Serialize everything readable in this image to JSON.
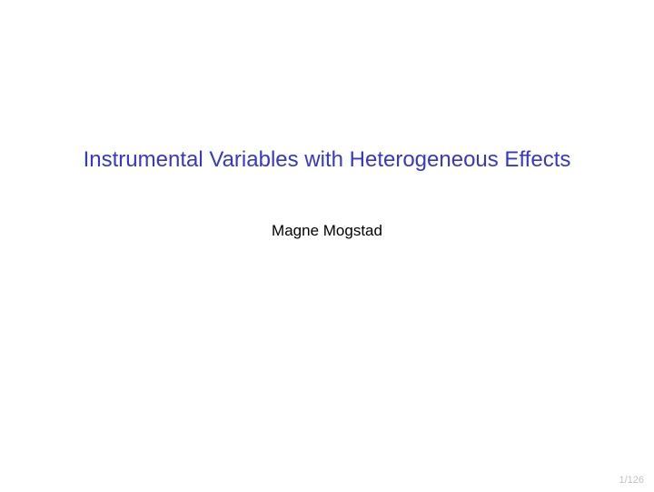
{
  "title": "Instrumental Variables with Heterogeneous Effects",
  "author": "Magne Mogstad",
  "page_number": "1/126",
  "colors": {
    "title_color": "#3737c8",
    "author_color": "#000000",
    "page_number_color": "#c0c0c8",
    "background": "#ffffff"
  },
  "typography": {
    "title_fontsize": 24,
    "author_fontsize": 17,
    "page_number_fontsize": 11,
    "font_family": "Helvetica Neue, Helvetica, Arial, sans-serif"
  }
}
